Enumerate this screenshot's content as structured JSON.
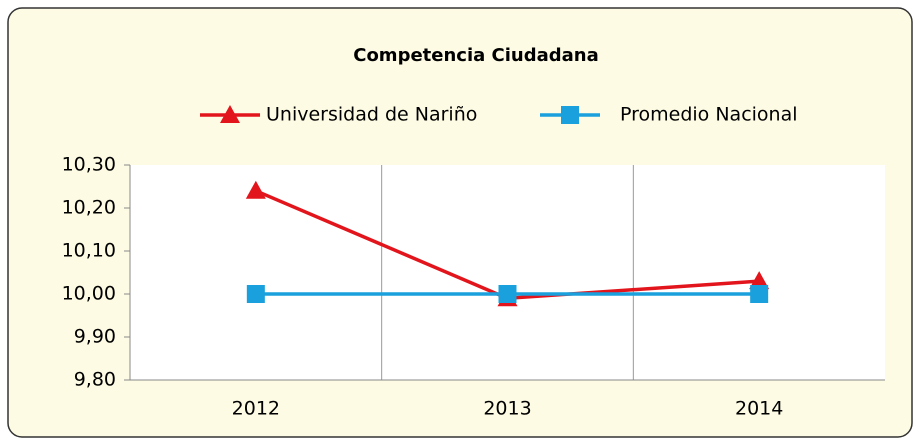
{
  "chart_data": {
    "type": "line",
    "title": "Competencia Ciudadana",
    "categories": [
      "2012",
      "2013",
      "2014"
    ],
    "series": [
      {
        "name": "Universidad de Nariño",
        "color": "#e3151c",
        "marker": "triangle",
        "values": [
          10.24,
          9.99,
          10.03
        ]
      },
      {
        "name": "Promedio Nacional",
        "color": "#1aa0dc",
        "marker": "square",
        "values": [
          10.0,
          10.0,
          10.0
        ]
      }
    ],
    "ylim": [
      9.8,
      10.3
    ],
    "yticks": [
      {
        "value": 9.8,
        "label": "9,80"
      },
      {
        "value": 9.9,
        "label": "9,90"
      },
      {
        "value": 10.0,
        "label": "10,00"
      },
      {
        "value": 10.1,
        "label": "10,10"
      },
      {
        "value": 10.2,
        "label": "10,20"
      },
      {
        "value": 10.3,
        "label": "10,30"
      }
    ],
    "legend": "top"
  }
}
